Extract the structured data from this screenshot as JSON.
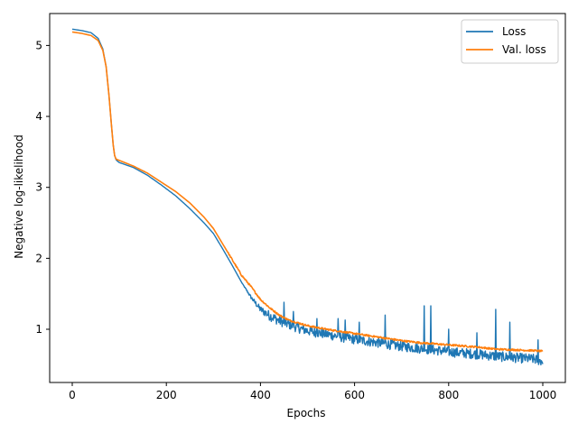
{
  "chart_data": {
    "type": "line",
    "title": "",
    "xlabel": "Epochs",
    "ylabel": "Negative log-likelihood",
    "xlim": [
      -48,
      1048
    ],
    "ylim": [
      0.25,
      5.45
    ],
    "x_ticks": [
      0,
      200,
      400,
      600,
      800,
      1000
    ],
    "y_ticks": [
      1,
      2,
      3,
      4,
      5
    ],
    "grid": false,
    "legend_position": "top-right",
    "colors": {
      "loss": "#1f77b4",
      "val_loss": "#ff7f0e"
    },
    "series": [
      {
        "name": "Loss",
        "color": "#1f77b4",
        "x": [
          0,
          20,
          40,
          55,
          65,
          72,
          78,
          83,
          87,
          90,
          93,
          96,
          100,
          130,
          160,
          190,
          220,
          250,
          280,
          300,
          320,
          340,
          360,
          380,
          400,
          420,
          440,
          460,
          480,
          500,
          540,
          580,
          620,
          660,
          700,
          740,
          780,
          820,
          860,
          900,
          940,
          980,
          1000
        ],
        "y": [
          5.23,
          5.21,
          5.18,
          5.1,
          4.95,
          4.7,
          4.3,
          3.9,
          3.6,
          3.45,
          3.39,
          3.37,
          3.35,
          3.28,
          3.17,
          3.03,
          2.88,
          2.7,
          2.5,
          2.35,
          2.13,
          1.9,
          1.66,
          1.45,
          1.28,
          1.19,
          1.12,
          1.07,
          1.02,
          0.98,
          0.93,
          0.88,
          0.84,
          0.8,
          0.76,
          0.73,
          0.7,
          0.67,
          0.65,
          0.62,
          0.6,
          0.58,
          0.55
        ],
        "noise": {
          "start_epoch": 360,
          "amplitude": 0.07
        },
        "spikes": [
          {
            "x": 450,
            "y": 1.38
          },
          {
            "x": 470,
            "y": 1.25
          },
          {
            "x": 520,
            "y": 1.15
          },
          {
            "x": 565,
            "y": 1.15
          },
          {
            "x": 580,
            "y": 1.13
          },
          {
            "x": 610,
            "y": 1.1
          },
          {
            "x": 665,
            "y": 1.2
          },
          {
            "x": 748,
            "y": 1.33
          },
          {
            "x": 762,
            "y": 1.33
          },
          {
            "x": 800,
            "y": 1.0
          },
          {
            "x": 860,
            "y": 0.95
          },
          {
            "x": 900,
            "y": 1.28
          },
          {
            "x": 930,
            "y": 1.1
          },
          {
            "x": 990,
            "y": 0.85
          }
        ]
      },
      {
        "name": "Val. loss",
        "color": "#ff7f0e",
        "x": [
          0,
          20,
          40,
          55,
          65,
          72,
          78,
          83,
          87,
          90,
          93,
          96,
          100,
          130,
          160,
          190,
          220,
          250,
          280,
          300,
          320,
          340,
          360,
          380,
          400,
          420,
          440,
          460,
          480,
          500,
          540,
          580,
          620,
          660,
          700,
          740,
          780,
          820,
          860,
          900,
          940,
          980,
          1000
        ],
        "y": [
          5.19,
          5.17,
          5.14,
          5.07,
          4.93,
          4.7,
          4.3,
          3.9,
          3.6,
          3.45,
          3.4,
          3.39,
          3.38,
          3.3,
          3.2,
          3.07,
          2.94,
          2.78,
          2.58,
          2.42,
          2.2,
          1.98,
          1.76,
          1.6,
          1.42,
          1.3,
          1.2,
          1.13,
          1.09,
          1.05,
          1.0,
          0.96,
          0.92,
          0.88,
          0.84,
          0.81,
          0.79,
          0.77,
          0.75,
          0.72,
          0.71,
          0.7,
          0.69
        ]
      }
    ]
  }
}
